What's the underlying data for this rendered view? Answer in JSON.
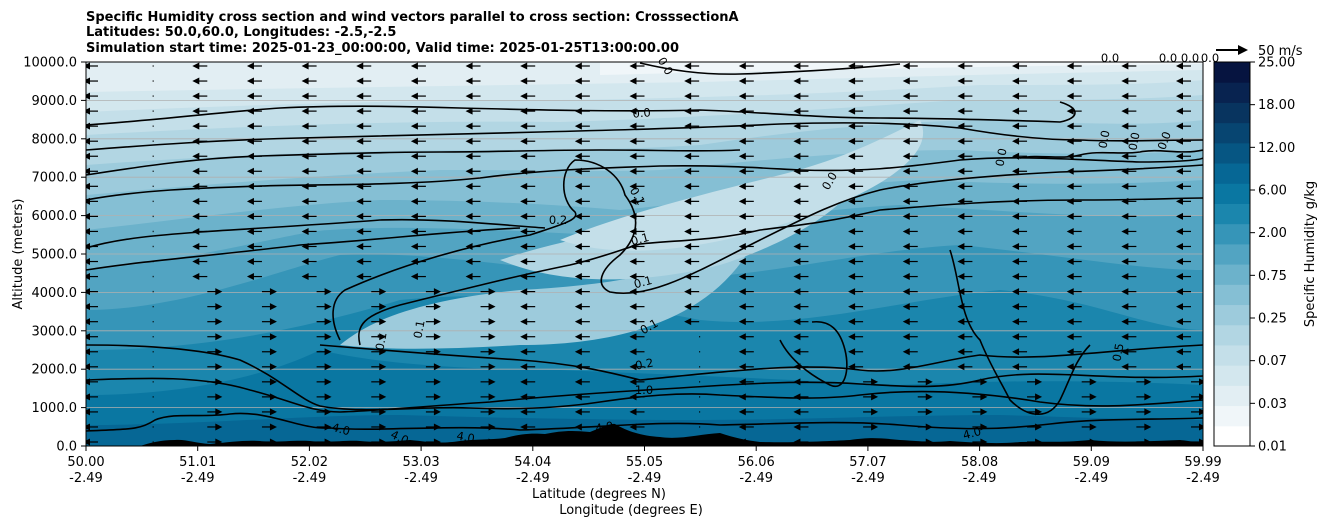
{
  "chart_data": {
    "type": "heatmap",
    "title_lines": [
      "Specific Humidity cross section and wind vectors parallel to cross section: CrosssectionA",
      "Latitudes: 50.0,60.0, Longitudes: -2.5,-2.5",
      "Simulation start time: 2025-01-23_00:00:00, Valid time: 2025-01-25T13:00:00.00"
    ],
    "xlabel_lines": [
      "Latitude (degrees N)",
      "Longitude (degrees E)"
    ],
    "ylabel": "Altitude (meters)",
    "x_ticks": [
      {
        "lat": "50.00",
        "lon": "-2.49"
      },
      {
        "lat": "51.01",
        "lon": "-2.49"
      },
      {
        "lat": "52.02",
        "lon": "-2.49"
      },
      {
        "lat": "53.03",
        "lon": "-2.49"
      },
      {
        "lat": "54.04",
        "lon": "-2.49"
      },
      {
        "lat": "55.05",
        "lon": "-2.49"
      },
      {
        "lat": "56.06",
        "lon": "-2.49"
      },
      {
        "lat": "57.07",
        "lon": "-2.49"
      },
      {
        "lat": "58.08",
        "lon": "-2.49"
      },
      {
        "lat": "59.09",
        "lon": "-2.49"
      },
      {
        "lat": "59.99",
        "lon": "-2.49"
      }
    ],
    "xlim": [
      50.0,
      59.99
    ],
    "y_ticks": [
      "0.0",
      "1000.0",
      "2000.0",
      "3000.0",
      "4000.0",
      "5000.0",
      "6000.0",
      "7000.0",
      "8000.0",
      "9000.0",
      "10000.0"
    ],
    "y_tick_values": [
      0,
      1000,
      2000,
      3000,
      4000,
      5000,
      6000,
      7000,
      8000,
      9000,
      10000
    ],
    "ylim": [
      0,
      10000
    ],
    "grid": "horizontal",
    "colorbar": {
      "label": "Specific Humidity g/kg",
      "levels": [
        0.01,
        0.02,
        0.03,
        0.05,
        0.07,
        0.1,
        0.25,
        0.5,
        0.75,
        1.0,
        2.0,
        4.0,
        6.0,
        9.0,
        12.0,
        15.0,
        18.0,
        21.0,
        25.0
      ],
      "tick_labels": [
        "0.01",
        "0.03",
        "0.07",
        "0.25",
        "0.75",
        "2.00",
        "6.00",
        "12.00",
        "18.00",
        "25.00"
      ],
      "colors": [
        "#ffffff",
        "#f0f6f9",
        "#e2eef3",
        "#d3e7ee",
        "#c4dfe9",
        "#b2d6e3",
        "#9dcbdc",
        "#85bfd4",
        "#6cb2cb",
        "#52a4c2",
        "#3695b8",
        "#1b86ad",
        "#0a77a2",
        "#066795",
        "#065683",
        "#074571",
        "#08345f",
        "#082350",
        "#061440"
      ],
      "title": "Specific Humidity g/kg"
    },
    "wind_key_label": "50 m/s",
    "wind_direction": "mostly leftward aloft, rightward in the lower south-centre and far north low levels",
    "contour_labels": [
      "0.0",
      "0.0",
      "0.0",
      "0.0",
      "0.0",
      "0.0",
      "0.0",
      "0.0",
      "0.0",
      "0.0",
      "0.0",
      "0.1",
      "0.1",
      "0.1",
      "0.1",
      "0.1",
      "0.1",
      "0.2",
      "0.2",
      "0.5",
      "1.0",
      "4.0",
      "4.0",
      "4.0",
      "4.0",
      "4.0"
    ]
  }
}
